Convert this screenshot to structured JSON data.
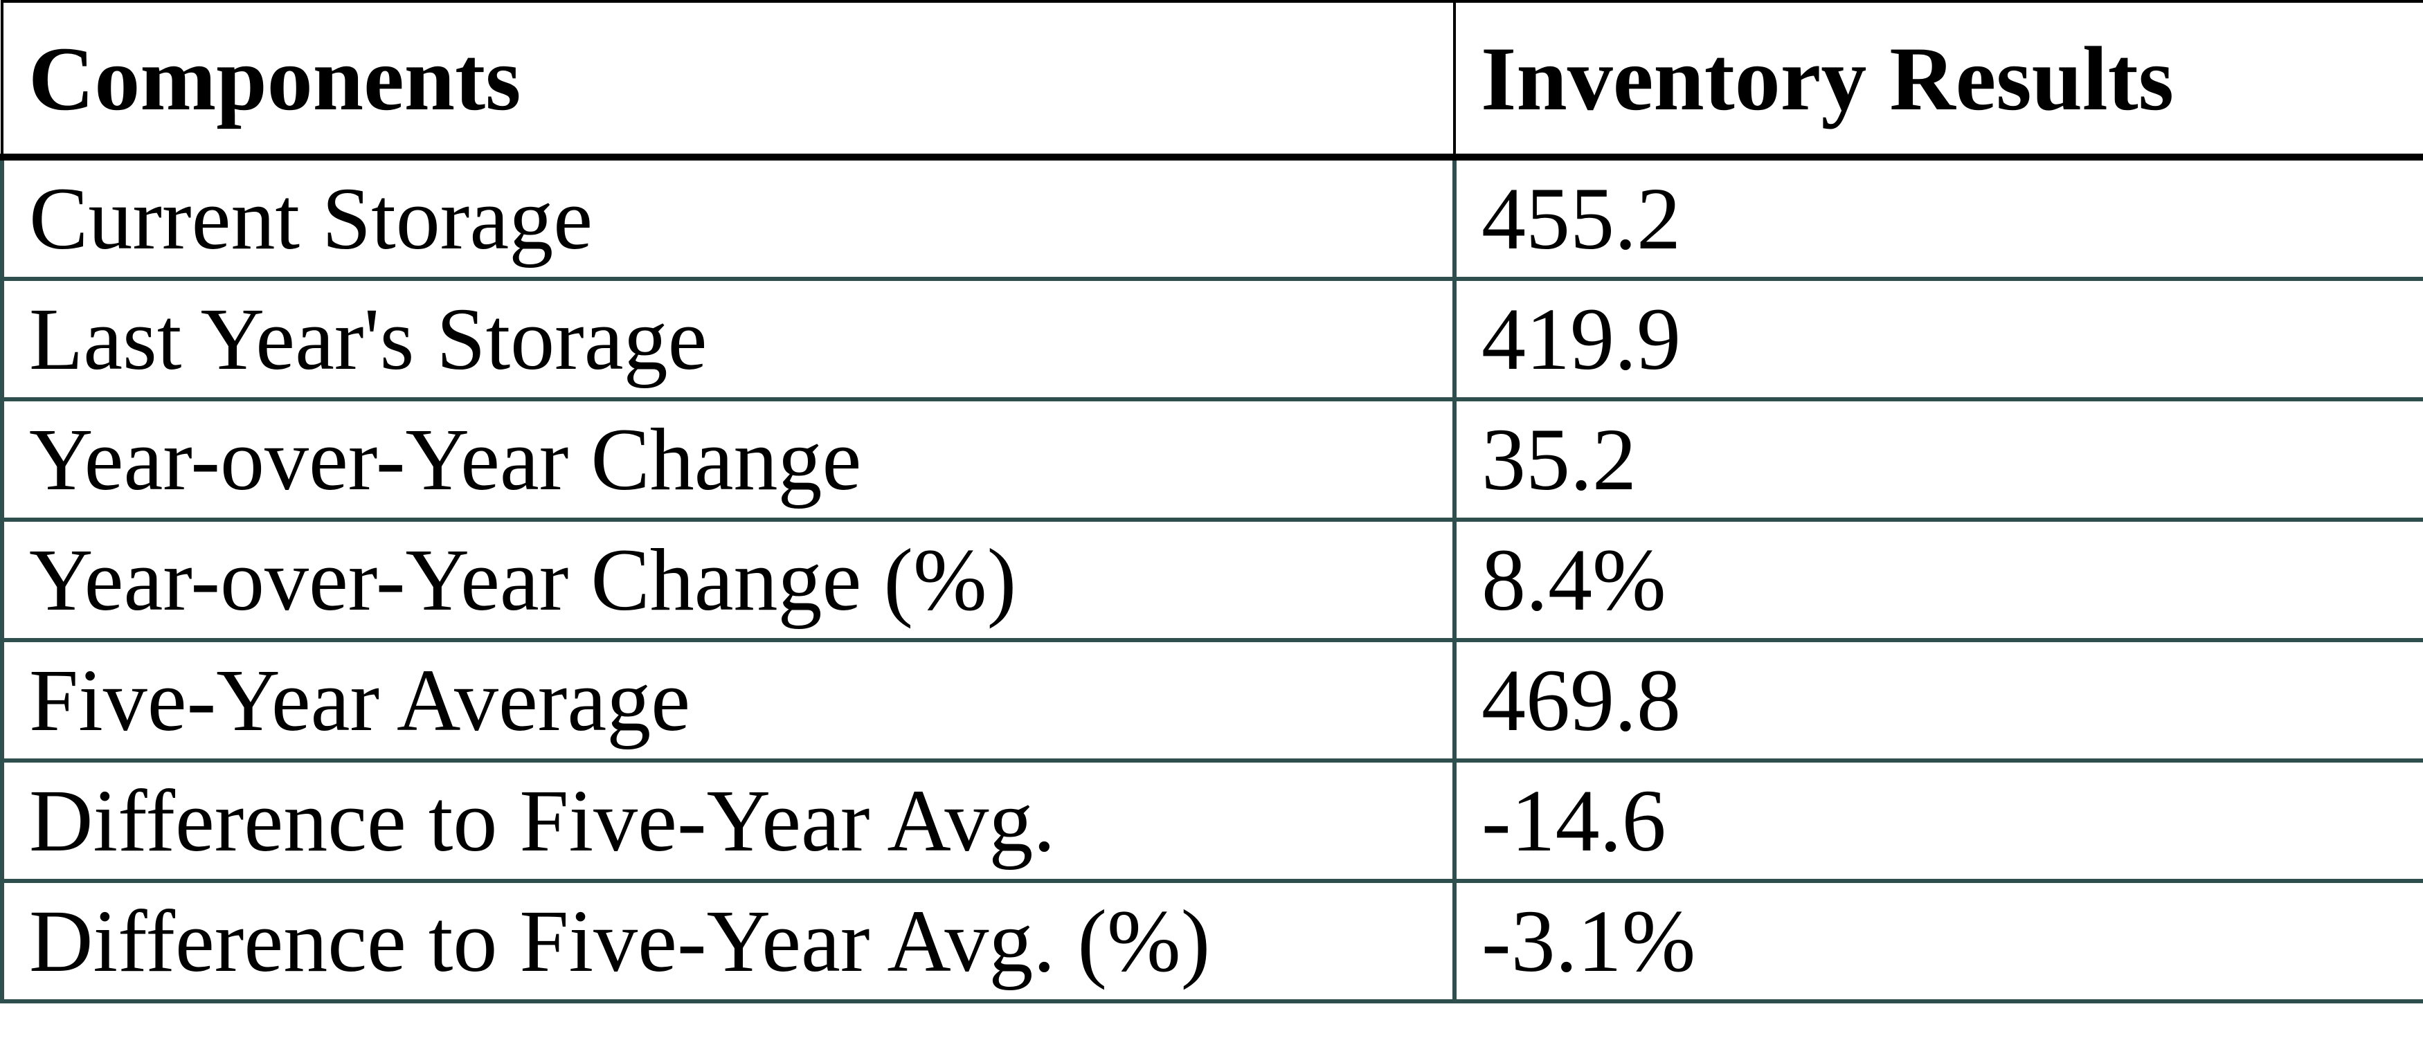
{
  "chart_data": {
    "type": "table",
    "columns": [
      "Components",
      "Inventory Results"
    ],
    "rows": [
      [
        "Current Storage",
        "455.2"
      ],
      [
        "Last Year's Storage",
        "419.9"
      ],
      [
        "Year-over-Year Change",
        "35.2"
      ],
      [
        "Year-over-Year Change (%)",
        "8.4%"
      ],
      [
        "Five-Year Average",
        "469.8"
      ],
      [
        "Difference to Five-Year Avg.",
        "-14.6"
      ],
      [
        "Difference to Five-Year Avg. (%)",
        "-3.1%"
      ]
    ]
  },
  "colors": {
    "header_border": "#000000",
    "body_border": "#2F4F4F",
    "text": "#000000",
    "background": "#FFFFFF"
  }
}
